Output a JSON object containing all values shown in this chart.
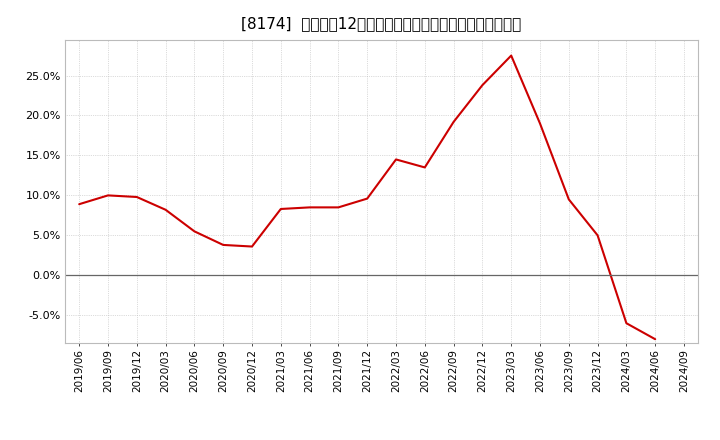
{
  "title": "[8174]  売上高の12か月移動合計の対前年同期増減率の推移",
  "line_color": "#cc0000",
  "background_color": "#ffffff",
  "plot_bg_color": "#ffffff",
  "grid_color": "#bbbbbb",
  "zero_line_color": "#666666",
  "dates": [
    "2019/06",
    "2019/09",
    "2019/12",
    "2020/03",
    "2020/06",
    "2020/09",
    "2020/12",
    "2021/03",
    "2021/06",
    "2021/09",
    "2021/12",
    "2022/03",
    "2022/06",
    "2022/09",
    "2022/12",
    "2023/03",
    "2023/06",
    "2023/09",
    "2023/12",
    "2024/03",
    "2024/06",
    "2024/09"
  ],
  "values": [
    0.089,
    0.1,
    0.098,
    0.082,
    0.055,
    0.038,
    0.036,
    0.083,
    0.085,
    0.085,
    0.096,
    0.145,
    0.135,
    0.192,
    0.238,
    0.275,
    0.19,
    0.095,
    0.05,
    -0.06,
    -0.08,
    null
  ],
  "ylim": [
    -0.085,
    0.295
  ],
  "yticks": [
    -0.05,
    0.0,
    0.05,
    0.1,
    0.15,
    0.2,
    0.25
  ],
  "figsize": [
    7.2,
    4.4
  ],
  "dpi": 100,
  "title_fontsize": 11,
  "tick_fontsize": 7.5,
  "ytick_fontsize": 8
}
